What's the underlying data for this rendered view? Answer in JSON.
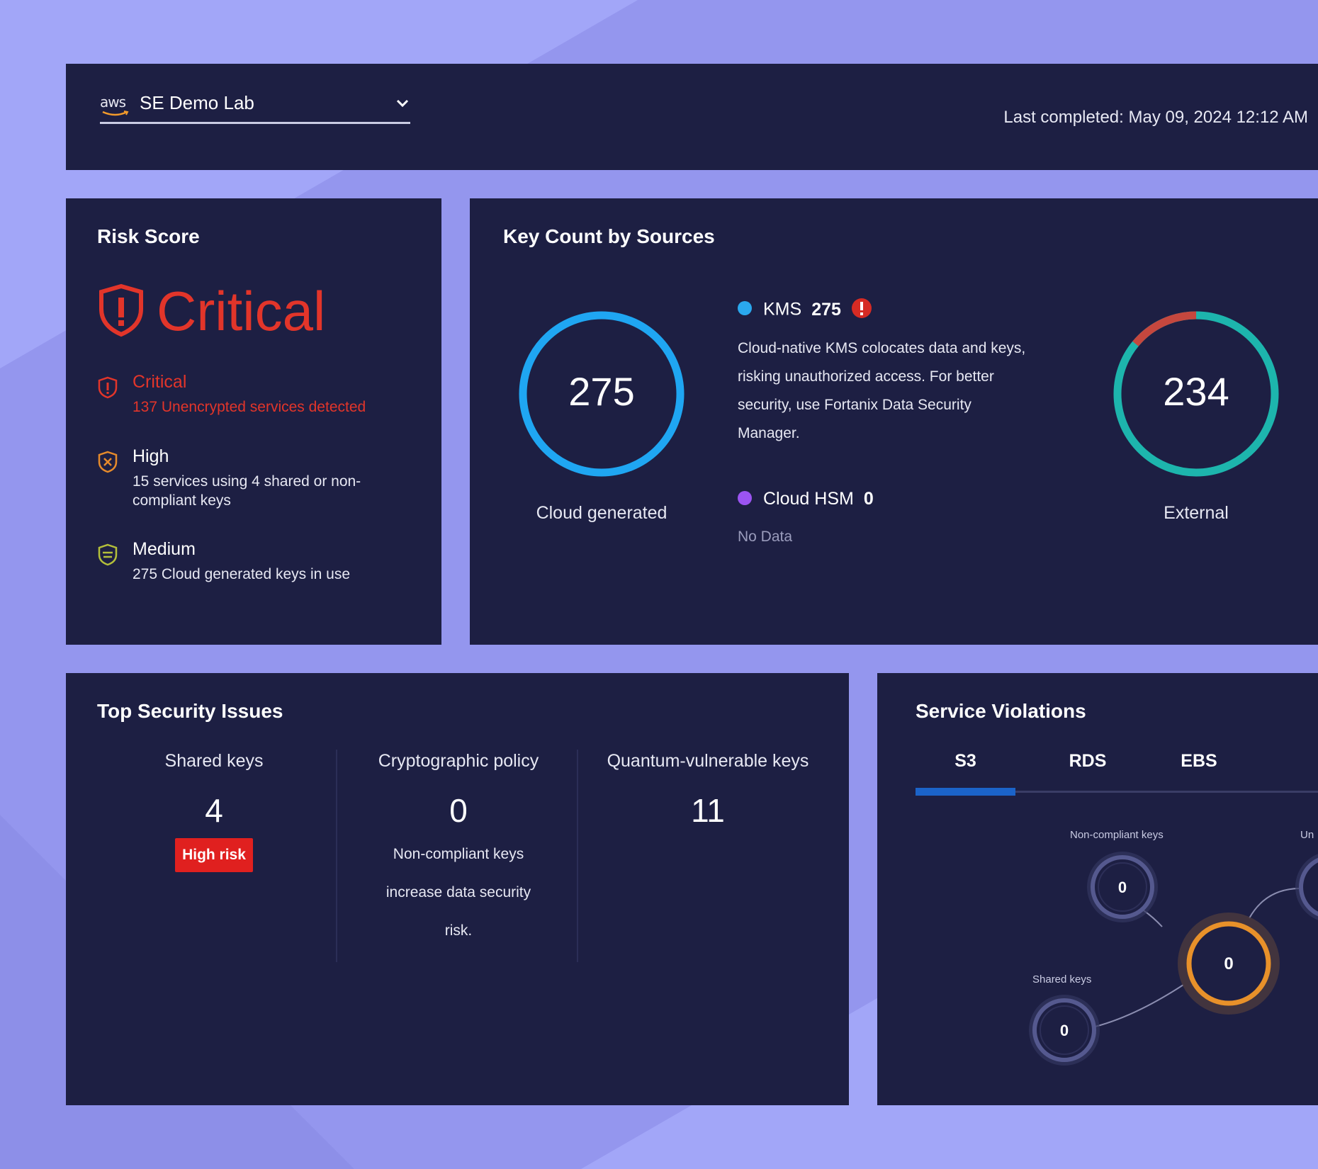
{
  "header": {
    "account_logo": "aws",
    "account_name": "SE Demo Lab",
    "last_completed": "Last completed: May 09, 2024 12:12 AM"
  },
  "risk_score": {
    "title": "Risk Score",
    "level": "Critical",
    "items": [
      {
        "title": "Critical",
        "desc": "137 Unencrypted services detected",
        "color": "#e2352a"
      },
      {
        "title": "High",
        "desc": "15 services using 4 shared or non-compliant keys",
        "color": "#e58a2b"
      },
      {
        "title": "Medium",
        "desc": "275 Cloud generated keys in use",
        "color": "#b4bf3a"
      }
    ]
  },
  "key_count": {
    "title": "Key Count by Sources",
    "cloud_generated": {
      "value": "275",
      "label": "Cloud generated",
      "color": "#1fa6f2"
    },
    "external": {
      "value": "234",
      "label": "External",
      "teal_color": "#1db5ad",
      "red_color": "#c5473e",
      "red_fraction": 0.14
    },
    "kms": {
      "name": "KMS",
      "count": "275",
      "color": "#2aa8ee",
      "desc": "Cloud-native KMS colocates data and keys, risking unauthorized access. For better security, use Fortanix Data Security Manager."
    },
    "cloud_hsm": {
      "name": "Cloud HSM",
      "count": "0",
      "color": "#9b54f2",
      "note": "No Data"
    }
  },
  "issues": {
    "title": "Top Security Issues",
    "columns": [
      {
        "header": "Shared keys",
        "value": "4",
        "badge": "High risk"
      },
      {
        "header": "Cryptographic policy",
        "value": "0",
        "note": "Non-compliant keys increase data security risk."
      },
      {
        "header": "Quantum-vulnerable keys",
        "value": "11"
      }
    ]
  },
  "violations": {
    "title": "Service Violations",
    "tabs": [
      "S3",
      "RDS",
      "EBS"
    ],
    "active_tab": "S3",
    "nodes": {
      "non_compliant": {
        "label": "Non-compliant keys",
        "value": "0"
      },
      "partial_label": "Un",
      "center": {
        "value": "0"
      },
      "shared": {
        "label": "Shared keys",
        "value": "0"
      }
    }
  }
}
